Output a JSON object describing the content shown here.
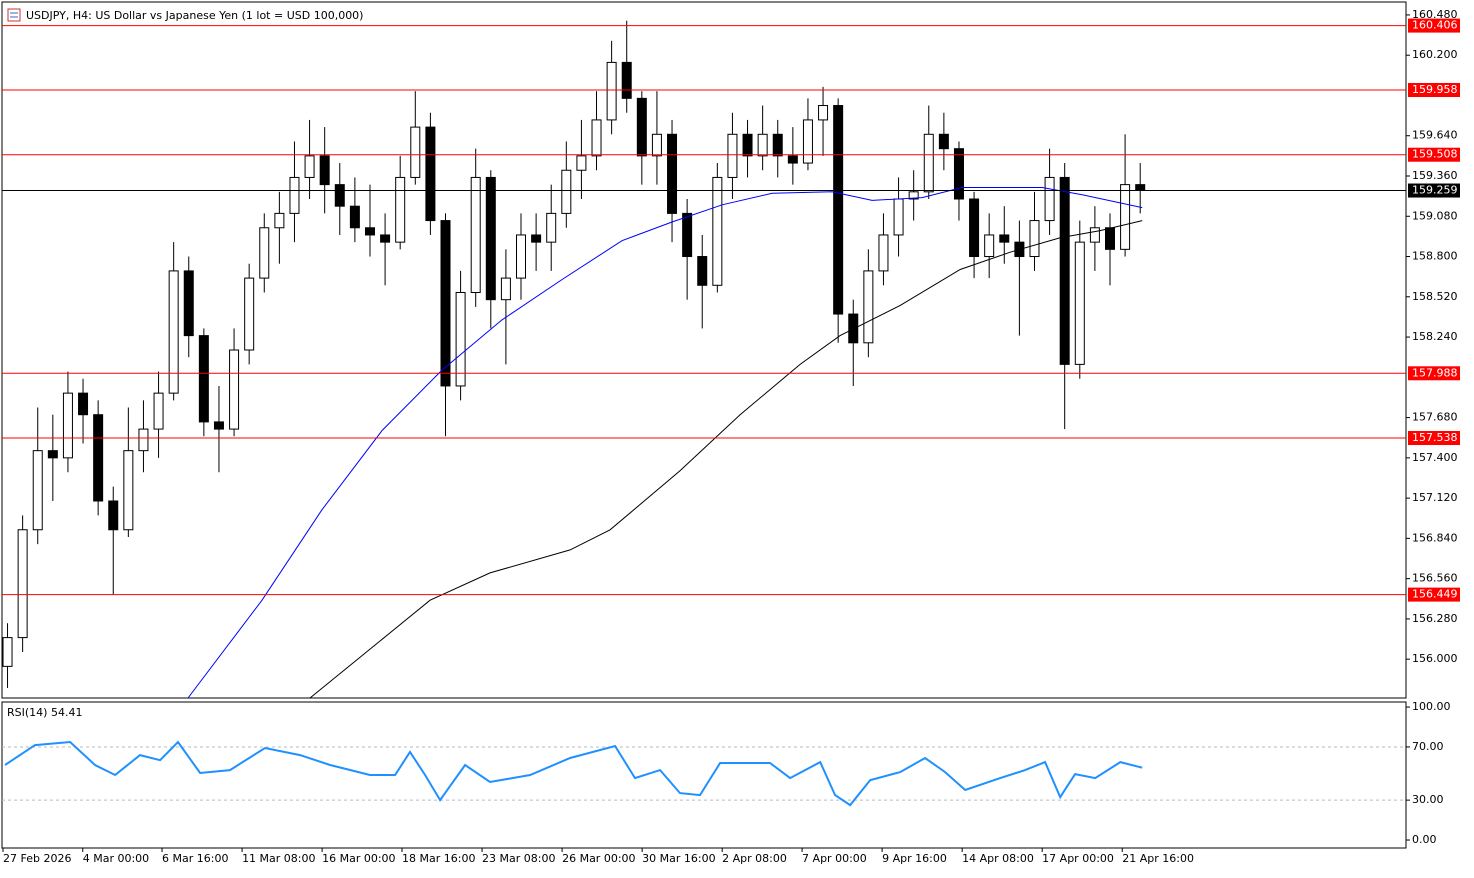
{
  "chart_data": [
    {
      "type": "candlestick",
      "title": "USDJPY, H4:  US Dollar vs Japanese Yen (1 lot = USD 100,000)",
      "x": [
        0,
        1,
        2,
        3,
        4,
        5,
        6,
        7,
        8,
        9,
        10,
        11,
        12,
        13,
        14,
        15,
        16,
        17,
        18,
        19,
        20,
        21,
        22,
        23,
        24,
        25,
        26,
        27,
        28,
        29,
        30,
        31,
        32,
        33,
        34,
        35,
        36,
        37,
        38,
        39,
        40,
        41,
        42,
        43,
        44,
        45,
        46,
        47,
        48,
        49,
        50,
        51,
        52,
        53,
        54,
        55,
        56,
        57,
        58,
        59,
        60,
        61,
        62,
        63,
        64,
        65,
        66,
        67,
        68,
        69,
        70,
        71,
        72,
        73,
        74,
        75
      ],
      "open": [
        155.95,
        156.15,
        156.9,
        157.45,
        157.4,
        157.85,
        157.7,
        157.1,
        156.9,
        157.45,
        157.6,
        157.85,
        158.7,
        158.25,
        157.65,
        157.6,
        158.15,
        158.65,
        159,
        159.1,
        159.35,
        159.5,
        159.3,
        159.15,
        159,
        158.95,
        158.9,
        159.35,
        159.7,
        159.05,
        157.9,
        158.55,
        159.35,
        158.5,
        158.65,
        158.95,
        158.9,
        159.1,
        159.4,
        159.5,
        159.75,
        160.15,
        159.9,
        159.5,
        159.65,
        159.1,
        158.8,
        158.6,
        159.35,
        159.65,
        159.5,
        159.65,
        159.5,
        159.45,
        159.75,
        159.85,
        158.4,
        158.2,
        158.7,
        158.95,
        159.2,
        159.25,
        159.65,
        159.55,
        159.2,
        158.8,
        158.95,
        158.9,
        158.8,
        159.05,
        159.35,
        158.05,
        158.9,
        159,
        158.85,
        159.3
      ],
      "high": [
        156.25,
        157,
        157.75,
        157.7,
        158,
        157.95,
        157.8,
        157.2,
        157.75,
        157.8,
        158,
        158.9,
        158.8,
        158.3,
        157.9,
        158.3,
        158.75,
        159.1,
        159.25,
        159.6,
        159.75,
        159.7,
        159.45,
        159.35,
        159.3,
        159.1,
        159.5,
        159.95,
        159.8,
        159.1,
        158.7,
        159.55,
        159.4,
        158.85,
        159.1,
        159.1,
        159.3,
        159.6,
        159.75,
        159.95,
        160.3,
        160.44,
        159.95,
        159.95,
        159.75,
        159.2,
        158.95,
        159.45,
        159.8,
        159.75,
        159.85,
        159.75,
        159.7,
        159.9,
        159.98,
        159.9,
        158.5,
        158.85,
        159.1,
        159.35,
        159.4,
        159.85,
        159.8,
        159.6,
        159.25,
        159.1,
        159.15,
        159.05,
        159.25,
        159.55,
        159.45,
        159.05,
        159.15,
        159.1,
        159.65,
        159.45
      ],
      "low": [
        155.8,
        156.05,
        156.8,
        157.1,
        157.3,
        157.5,
        157,
        156.45,
        156.85,
        157.3,
        157.4,
        157.8,
        158.1,
        157.55,
        157.3,
        157.55,
        158.05,
        158.55,
        158.75,
        158.9,
        159.2,
        159.1,
        158.95,
        158.9,
        158.8,
        158.6,
        158.85,
        159.3,
        158.95,
        157.55,
        157.8,
        158.45,
        158.3,
        158.05,
        158.5,
        158.7,
        158.7,
        159,
        159.2,
        159.4,
        159.65,
        159.8,
        159.3,
        159.3,
        158.9,
        158.5,
        158.3,
        158.55,
        159.2,
        159.35,
        159.4,
        159.35,
        159.3,
        159.4,
        159.5,
        158.2,
        157.9,
        158.1,
        158.6,
        158.8,
        159.05,
        159.2,
        159.4,
        159.05,
        158.65,
        158.65,
        158.75,
        158.25,
        158.7,
        158.95,
        157.6,
        157.95,
        158.7,
        158.6,
        158.8,
        159.1
      ],
      "close": [
        156.15,
        156.9,
        157.45,
        157.4,
        157.85,
        157.7,
        157.1,
        156.9,
        157.45,
        157.6,
        157.85,
        158.7,
        158.25,
        157.65,
        157.6,
        158.15,
        158.65,
        159,
        159.1,
        159.35,
        159.5,
        159.3,
        159.15,
        159,
        158.95,
        158.9,
        159.35,
        159.7,
        159.05,
        157.9,
        158.55,
        159.35,
        158.5,
        158.65,
        158.95,
        158.9,
        159.1,
        159.4,
        159.5,
        159.75,
        160.15,
        159.9,
        159.5,
        159.65,
        159.1,
        158.8,
        158.6,
        159.35,
        159.65,
        159.5,
        159.65,
        159.5,
        159.45,
        159.75,
        159.85,
        158.4,
        158.2,
        158.7,
        158.95,
        159.2,
        159.25,
        159.65,
        159.55,
        159.2,
        158.8,
        158.95,
        158.9,
        158.8,
        159.05,
        159.35,
        158.05,
        158.9,
        159,
        158.85,
        159.3,
        159.26
      ],
      "xlim": [
        -0.3,
        92.6
      ],
      "ylim": [
        155.73,
        160.57
      ],
      "yticks": [
        {
          "value": 156.0,
          "label": "156.000"
        },
        {
          "value": 156.28,
          "label": "156.280"
        },
        {
          "value": 156.56,
          "label": "156.560"
        },
        {
          "value": 156.84,
          "label": "156.840"
        },
        {
          "value": 157.12,
          "label": "157.120"
        },
        {
          "value": 157.4,
          "label": "157.400"
        },
        {
          "value": 157.68,
          "label": "157.680"
        },
        {
          "value": 158.24,
          "label": "158.240"
        },
        {
          "value": 158.52,
          "label": "158.520"
        },
        {
          "value": 158.8,
          "label": "158.800"
        },
        {
          "value": 159.08,
          "label": "159.080"
        },
        {
          "value": 159.36,
          "label": "159.360"
        },
        {
          "value": 159.64,
          "label": "159.640"
        },
        {
          "value": 160.2,
          "label": "160.200"
        },
        {
          "value": 160.48,
          "label": "160.480"
        }
      ],
      "xticks": [
        {
          "value": -0.3,
          "label": "27 Feb 2026"
        },
        {
          "value": 4.98,
          "label": "4 Mar 00:00"
        },
        {
          "value": 10.23,
          "label": "6 Mar 16:00"
        },
        {
          "value": 15.53,
          "label": "11 Mar 08:00"
        },
        {
          "value": 20.83,
          "label": "16 Mar 00:00"
        },
        {
          "value": 26.12,
          "label": "18 Mar 16:00"
        },
        {
          "value": 31.42,
          "label": "23 Mar 08:00"
        },
        {
          "value": 36.72,
          "label": "26 Mar 00:00"
        },
        {
          "value": 42.02,
          "label": "30 Mar 16:00"
        },
        {
          "value": 47.32,
          "label": "2 Apr 08:00"
        },
        {
          "value": 52.61,
          "label": "7 Apr 00:00"
        },
        {
          "value": 57.91,
          "label": "9 Apr 16:00"
        },
        {
          "value": 63.21,
          "label": "14 Apr 08:00"
        },
        {
          "value": 68.51,
          "label": "17 Apr 00:00"
        },
        {
          "value": 73.81,
          "label": "21 Apr 16:00"
        }
      ],
      "overlays": [
        {
          "color": "#0000ff",
          "x": [
            11.95,
            16.85,
            20.83,
            24.8,
            28.77,
            32.75,
            36.72,
            40.69,
            44.0,
            47.32,
            50.63,
            54.6,
            57.25,
            60.56,
            63.21,
            68.51,
            71.16,
            75.13
          ],
          "values": [
            155.73,
            156.41,
            157.04,
            157.59,
            158.01,
            158.36,
            158.64,
            158.91,
            159.04,
            159.16,
            159.24,
            159.25,
            159.19,
            159.21,
            159.28,
            159.28,
            159.23,
            159.14
          ]
        },
        {
          "color": "#000000",
          "x": [
            20.03,
            27.98,
            31.95,
            37.25,
            39.9,
            44.53,
            48.51,
            52.48,
            55.13,
            59.11,
            63.08,
            66.39,
            69.7,
            72.35,
            75.13
          ],
          "values": [
            155.73,
            156.41,
            156.6,
            156.76,
            156.9,
            157.31,
            157.7,
            158.05,
            158.25,
            158.46,
            158.71,
            158.83,
            158.93,
            158.98,
            159.05
          ]
        }
      ],
      "levels": {
        "color": "#ff0000",
        "values": [
          160.406,
          159.958,
          159.508,
          157.988,
          157.538,
          156.449
        ]
      },
      "current": {
        "color": "#000000",
        "value": 159.259
      }
    },
    {
      "type": "line",
      "title": "RSI(14) 54.41",
      "color": "#1e90ff",
      "x": [
        -0.17,
        1.82,
        4.14,
        5.79,
        7.12,
        8.77,
        10.1,
        11.29,
        12.75,
        14.73,
        17.05,
        19.37,
        21.36,
        24.0,
        25.66,
        26.65,
        27.65,
        28.64,
        30.3,
        31.95,
        34.6,
        37.25,
        40.23,
        41.55,
        43.21,
        44.53,
        45.85,
        47.18,
        50.49,
        51.82,
        53.81,
        54.8,
        55.79,
        57.12,
        59.11,
        60.76,
        62.08,
        63.41,
        65.73,
        67.38,
        68.7,
        69.7,
        70.69,
        72.02,
        73.68,
        75.13
      ],
      "values": [
        56.4,
        71.4,
        73.7,
        56.4,
        48.9,
        63.9,
        60,
        73.7,
        50.4,
        52.6,
        69.2,
        63.9,
        56.4,
        48.9,
        48.9,
        66.2,
        48.9,
        30,
        56.4,
        43.6,
        48.9,
        61.7,
        70.7,
        46.6,
        52.6,
        35.3,
        33.8,
        57.9,
        57.9,
        46.6,
        58.6,
        33.8,
        26.3,
        45.1,
        51.1,
        61.7,
        51.1,
        37.6,
        46.6,
        52.6,
        58.6,
        32.3,
        49.6,
        46.6,
        58.6,
        54.41
      ],
      "xlim": [
        -0.3,
        92.6
      ],
      "ylim": [
        -6,
        103.8
      ],
      "yticks": [
        {
          "value": 100,
          "label": "100.00"
        },
        {
          "value": 70,
          "label": "70.00"
        },
        {
          "value": 30,
          "label": "30.00"
        },
        {
          "value": 0,
          "label": "0.00"
        }
      ],
      "levels": [
        70,
        30
      ]
    }
  ]
}
